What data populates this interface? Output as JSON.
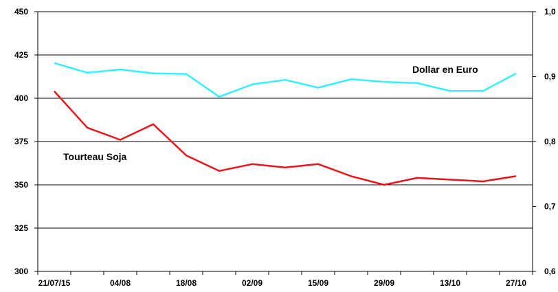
{
  "chart_data": {
    "type": "line",
    "x_tick_labels": [
      "21/07/15",
      "04/08",
      "18/08",
      "02/09",
      "15/09",
      "29/09",
      "13/10",
      "27/10"
    ],
    "y_left": {
      "min": 300,
      "max": 450,
      "ticks": [
        300,
        325,
        350,
        375,
        400,
        425,
        450
      ]
    },
    "y_right": {
      "min": 0.6,
      "max": 1.0,
      "ticks": [
        "0,6",
        "0,7",
        "0,8",
        "0,9",
        "1,0"
      ]
    },
    "grid": "horizontal",
    "series": [
      {
        "name": "Tourteau Soja",
        "axis": "left",
        "color": "#e8141a",
        "values": [
          404,
          383,
          376,
          385,
          367,
          358,
          362,
          360,
          362,
          355,
          350,
          354,
          353,
          352,
          355
        ]
      },
      {
        "name": "Dollar en Euro",
        "axis": "right",
        "color": "#33f0ff",
        "values": [
          0.921,
          0.906,
          0.911,
          0.905,
          0.904,
          0.869,
          0.888,
          0.895,
          0.883,
          0.896,
          0.892,
          0.89,
          0.878,
          0.878,
          0.905
        ]
      }
    ]
  }
}
